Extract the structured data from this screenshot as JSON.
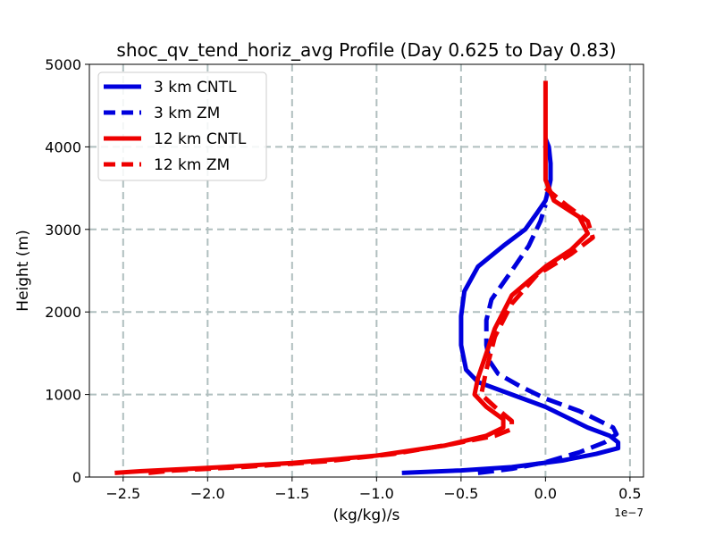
{
  "chart_data": {
    "type": "line",
    "title": "shoc_qv_tend_horiz_avg Profile (Day 0.625 to Day 0.83)",
    "xlabel": "(kg/kg)/s",
    "ylabel": "Height (m)",
    "x_offset_label": "1e−7",
    "xlim": [
      -2.7,
      0.58
    ],
    "ylim": [
      0,
      5000
    ],
    "xticks": [
      -2.5,
      -2.0,
      -1.5,
      -1.0,
      -0.5,
      0.0,
      0.5
    ],
    "xtick_labels": [
      "−2.5",
      "−2.0",
      "−1.5",
      "−1.0",
      "−0.5",
      "0.0",
      "0.5"
    ],
    "yticks": [
      0,
      1000,
      2000,
      3000,
      4000,
      5000
    ],
    "ytick_labels": [
      "0",
      "1000",
      "2000",
      "3000",
      "4000",
      "5000"
    ],
    "grid": true,
    "legend_position": "top-left",
    "series": [
      {
        "name": "3 km CNTL",
        "color": "#0000dd",
        "dash": "solid",
        "x": [
          -0.85,
          -0.5,
          -0.2,
          0.1,
          0.3,
          0.43,
          0.43,
          0.38,
          0.25,
          0.0,
          -0.2,
          -0.4,
          -0.47,
          -0.5,
          -0.5,
          -0.48,
          -0.4,
          -0.25,
          -0.12,
          -0.05,
          0.0,
          0.02,
          0.03,
          0.03,
          0.02,
          0.0
        ],
        "y": [
          50,
          80,
          120,
          200,
          280,
          350,
          420,
          500,
          600,
          850,
          1000,
          1150,
          1300,
          1600,
          1950,
          2250,
          2550,
          2800,
          3000,
          3200,
          3350,
          3500,
          3600,
          3800,
          4000,
          4100
        ]
      },
      {
        "name": "3 km ZM",
        "color": "#0000dd",
        "dash": "dashed",
        "x": [
          -0.4,
          -0.2,
          0.0,
          0.2,
          0.35,
          0.42,
          0.4,
          0.2,
          0.0,
          -0.15,
          -0.28,
          -0.33,
          -0.35,
          -0.35,
          -0.32,
          -0.2,
          -0.1,
          -0.03,
          0.0
        ],
        "y": [
          50,
          100,
          180,
          300,
          420,
          520,
          600,
          800,
          950,
          1100,
          1250,
          1400,
          1600,
          1900,
          2150,
          2500,
          2800,
          3100,
          3300
        ]
      },
      {
        "name": "12 km CNTL",
        "color": "#ee0000",
        "dash": "solid",
        "x": [
          -2.55,
          -2.4,
          -2.0,
          -1.5,
          -1.0,
          -0.6,
          -0.35,
          -0.25,
          -0.25,
          -0.35,
          -0.42,
          -0.4,
          -0.35,
          -0.3,
          -0.2,
          0.0,
          0.15,
          0.25,
          0.2,
          0.05,
          0.0,
          0.0
        ],
        "y": [
          50,
          70,
          110,
          170,
          260,
          380,
          500,
          600,
          700,
          850,
          1000,
          1200,
          1500,
          1800,
          2200,
          2550,
          2750,
          2950,
          3150,
          3350,
          3600,
          4800
        ]
      },
      {
        "name": "12 km ZM",
        "color": "#ee0000",
        "dash": "dashed",
        "x": [
          -2.35,
          -2.2,
          -1.8,
          -1.3,
          -0.9,
          -0.55,
          -0.3,
          -0.2,
          -0.2,
          -0.3,
          -0.38,
          -0.35,
          -0.3,
          -0.2,
          -0.05,
          0.15,
          0.28,
          0.25,
          0.12,
          0.0
        ],
        "y": [
          50,
          80,
          120,
          190,
          280,
          400,
          500,
          580,
          680,
          850,
          1000,
          1300,
          1700,
          2100,
          2450,
          2700,
          2900,
          3100,
          3300,
          3500
        ]
      }
    ]
  }
}
